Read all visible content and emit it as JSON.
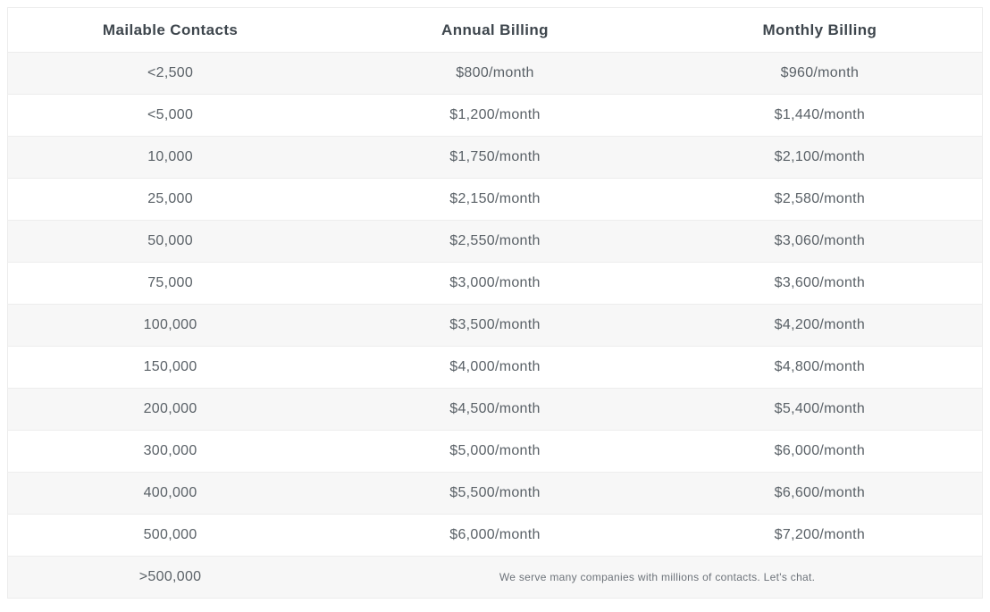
{
  "chart_data": {
    "type": "table",
    "title": "",
    "columns": [
      "Mailable Contacts",
      "Annual Billing",
      "Monthly Billing"
    ],
    "rows": [
      [
        "<2,500",
        "$800/month",
        "$960/month"
      ],
      [
        "<5,000",
        "$1,200/month",
        "$1,440/month"
      ],
      [
        "10,000",
        "$1,750/month",
        "$2,100/month"
      ],
      [
        "25,000",
        "$2,150/month",
        "$2,580/month"
      ],
      [
        "50,000",
        "$2,550/month",
        "$3,060/month"
      ],
      [
        "75,000",
        "$3,000/month",
        "$3,600/month"
      ],
      [
        "100,000",
        "$3,500/month",
        "$4,200/month"
      ],
      [
        "150,000",
        "$4,000/month",
        "$4,800/month"
      ],
      [
        "200,000",
        "$4,500/month",
        "$5,400/month"
      ],
      [
        "300,000",
        "$5,000/month",
        "$6,000/month"
      ],
      [
        "400,000",
        "$5,500/month",
        "$6,600/month"
      ],
      [
        "500,000",
        "$6,000/month",
        "$7,200/month"
      ]
    ],
    "footer_row": {
      "contacts": ">500,000",
      "note": "We serve many companies with millions of contacts. Let's chat."
    },
    "layout": {
      "striped": true,
      "stripe_start": "first-data-row",
      "alignment": "center",
      "grid": "horizontal-only"
    }
  },
  "colors": {
    "stripe_row": "#f7f7f7",
    "plain_row": "#ffffff",
    "table_border": "#ececec",
    "header_text": "#3e464d",
    "body_text": "#5a6167",
    "note_text": "#6d737a"
  }
}
